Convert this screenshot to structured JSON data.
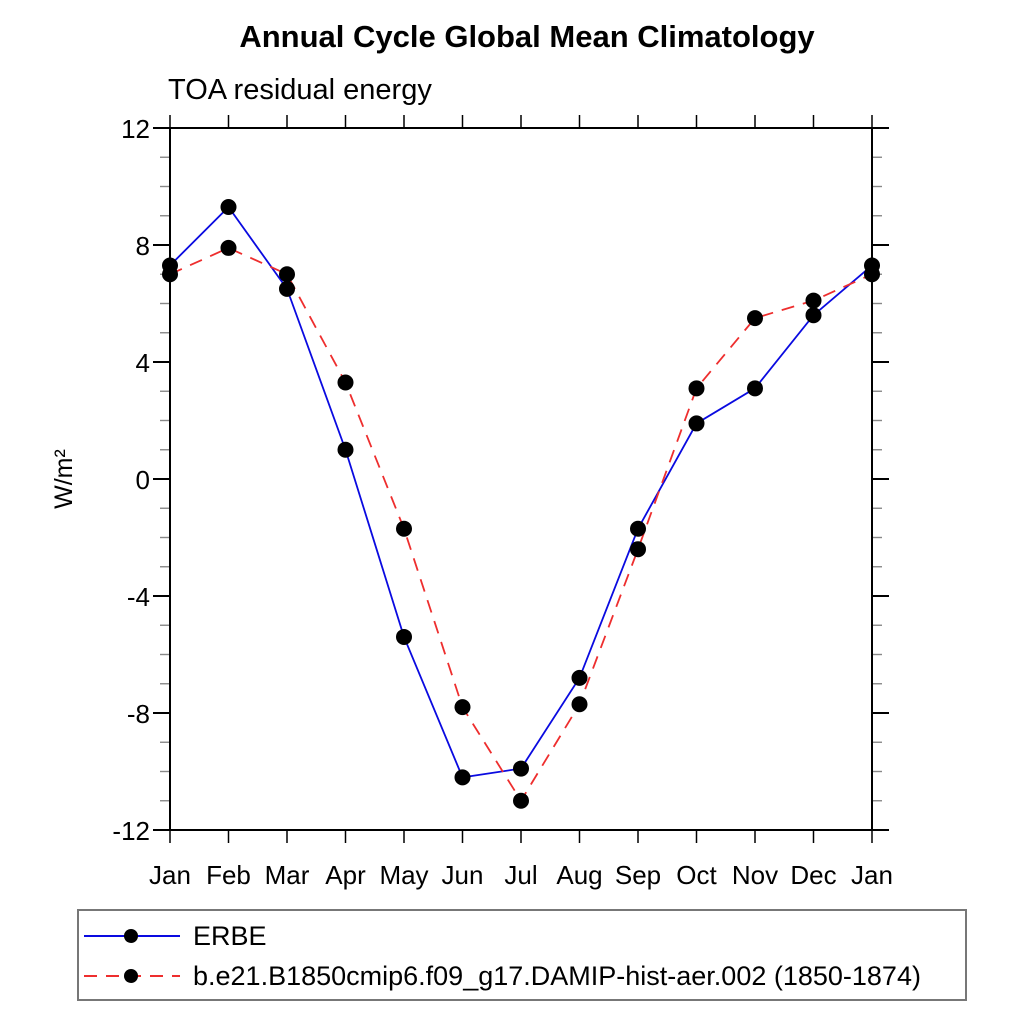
{
  "title": "Annual Cycle Global Mean Climatology",
  "subtitle": "TOA residual energy",
  "chart_data": {
    "type": "line",
    "title": "Annual Cycle Global Mean Climatology",
    "subtitle": "TOA residual energy",
    "xlabel": "",
    "ylabel": "W/m²",
    "ylim": [
      -12,
      12
    ],
    "y_major_ticks": [
      -12,
      -8,
      -4,
      0,
      4,
      8,
      12
    ],
    "y_minor_step": 1,
    "grid": false,
    "legend_position": "bottom-left-box",
    "categories": [
      "Jan",
      "Feb",
      "Mar",
      "Apr",
      "May",
      "Jun",
      "Jul",
      "Aug",
      "Sep",
      "Oct",
      "Nov",
      "Dec",
      "Jan"
    ],
    "series": [
      {
        "name": "ERBE",
        "style": "solid",
        "color": "#0a0ae0",
        "marker": "black-dot",
        "values": [
          7.3,
          9.3,
          6.5,
          1.0,
          -5.4,
          -10.2,
          -9.9,
          -6.8,
          -1.7,
          1.9,
          3.1,
          5.6,
          7.3
        ]
      },
      {
        "name": "b.e21.B1850cmip6.f09_g17.DAMIP-hist-aer.002 (1850-1874)",
        "style": "dashed",
        "color": "#ee2e2e",
        "marker": "black-dot",
        "values": [
          7.0,
          7.9,
          7.0,
          3.3,
          -1.7,
          -7.8,
          -11.0,
          -7.7,
          -2.4,
          3.1,
          5.5,
          6.1,
          7.0
        ]
      }
    ]
  },
  "colors": {
    "frame": "#000000",
    "major_tick": "#000000",
    "minor_tick": "#888888",
    "marker": "#000000",
    "legend_border": "#777777",
    "background": "#ffffff"
  }
}
